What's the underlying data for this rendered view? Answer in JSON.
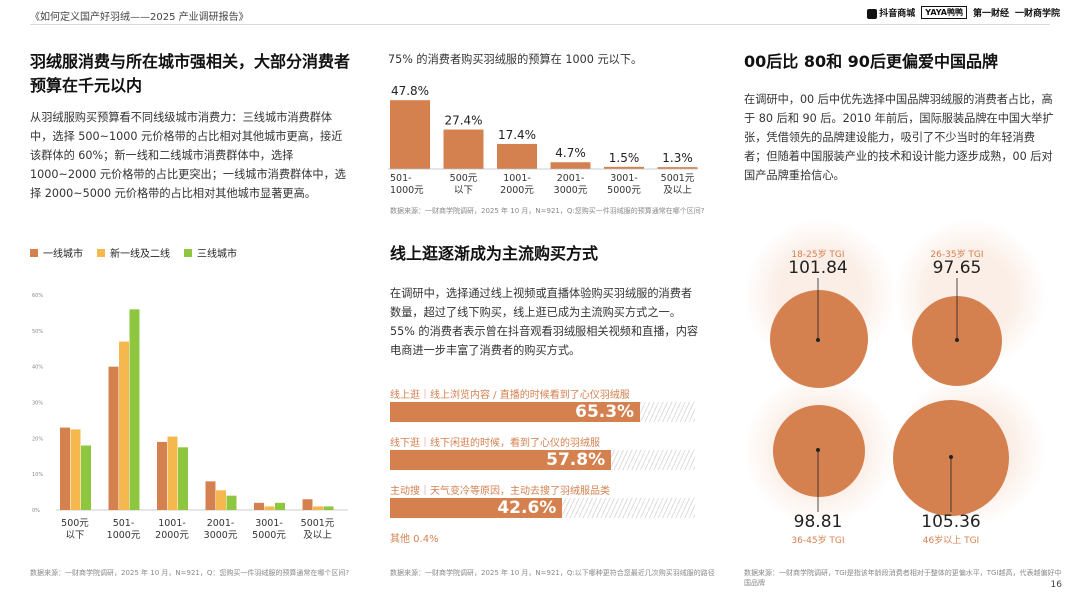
{
  "header": {
    "title": "《如何定义国产好羽绒——2025 产业调研报告》",
    "logos": [
      "抖音商城",
      "YAYA鸭鸭",
      "第一财经",
      "一财商学院"
    ]
  },
  "left": {
    "heading": "羽绒服消费与所在城市强相关，大部分消费者预算在千元以内",
    "body": "从羽绒服购买预算看不同线级城市消费力：三线城市消费群体中，选择 500~1000 元价格带的占比相对其他城市更高，接近该群体的 60%；新一线和二线城市消费群体中，选择 1000~2000 元价格带的占比更突出；一线城市消费群体中，选择 2000~5000 元价格带的占比相对其他城市显著更高。",
    "source": "数据来源：一财商学院调研，2025 年 10 月，N=921，Q：您购买一件羽绒服的预算通常在哪个区间?"
  },
  "middle": {
    "budget_caption": "75% 的消费者购买羽绒服的预算在 1000 元以下。",
    "budget_source": "数据来源：一财商学院调研，2025 年 10 月，N=921，Q:您购买一件羽绒服的预算通常在哪个区间?",
    "heading": "线上逛逐渐成为主流购买方式",
    "body": "在调研中，选择通过线上视频或直播体验购买羽绒服的消费者数量，超过了线下购买，线上逛已成为主流购买方式之一。55% 的消费者表示曾在抖音观看羽绒服相关视频和直播，内容电商进一步丰富了消费者的购买方式。",
    "bars": [
      {
        "label": "线上逛｜线上浏览内容 / 直播的时候看到了心仪羽绒服",
        "value_text": "65.3%",
        "value": 65.3
      },
      {
        "label": "线下逛｜线下闲逛的时候，看到了心仪的羽绒服",
        "value_text": "57.8%",
        "value": 57.8
      },
      {
        "label": "主动搜｜天气变冷等原因，主动去搜了羽绒服品类",
        "value_text": "42.6%",
        "value": 42.6
      }
    ],
    "other": "其他 0.4%",
    "source": "数据来源：一财商学院调研，2025 年 10 月，N=921，Q:以下哪种更符合您最近几次购买羽绒服的路径"
  },
  "right": {
    "heading": "00后比 80和 90后更偏爱中国品牌",
    "body": "在调研中，00 后中优先选择中国品牌羽绒服的消费者占比，高于 80 后和 90 后。2010 年前后，国际服装品牌在中国大举扩张，凭借领先的品牌建设能力，吸引了不少当时的年轻消费者；但随着中国服装产业的技术和设计能力逐步成熟，00 后对国产品牌重拾信心。",
    "tgi": [
      {
        "label": "18-25岁 TGI",
        "value": "101.84"
      },
      {
        "label": "26-35岁 TGI",
        "value": "97.65"
      },
      {
        "label": "36-45岁 TGI",
        "value": "98.81"
      },
      {
        "label": "46岁以上 TGI",
        "value": "105.36"
      }
    ],
    "source": "数据来源：一财商学院调研，TGI是指该年龄段消费者相对于整体的更偏水平，TGI越高，代表越偏好中国品牌"
  },
  "page_number": "16",
  "colors": {
    "accent": "#d4804f",
    "tier2": "#f5b84e",
    "tier3": "#8ec63f"
  },
  "chart_data": [
    {
      "type": "bar",
      "title": "",
      "categories": [
        "500元以下",
        "501-1000元",
        "1001-2000元",
        "2001-3000元",
        "3001-5000元",
        "5001元及以上"
      ],
      "series": [
        {
          "name": "一线城市",
          "values": [
            23,
            40,
            19,
            8,
            2,
            3
          ]
        },
        {
          "name": "新一线及二线",
          "values": [
            22.5,
            47,
            20.5,
            5.5,
            1,
            1
          ]
        },
        {
          "name": "三线城市",
          "values": [
            18,
            56,
            17.5,
            4,
            2,
            1
          ]
        }
      ],
      "yticks": [
        "0%",
        "10%",
        "20%",
        "30%",
        "40%",
        "50%",
        "60%"
      ],
      "ylim": [
        0,
        60
      ],
      "xlabel": "",
      "ylabel": "",
      "legend": "top-left"
    },
    {
      "type": "bar",
      "title": "75% 的消费者购买羽绒服的预算在 1000 元以下。",
      "categories": [
        "501-1000元",
        "500元以下",
        "1001-2000元",
        "2001-3000元",
        "3001-5000元",
        "5001元及以上"
      ],
      "values": [
        47.8,
        27.4,
        17.4,
        4.7,
        1.5,
        1.3
      ],
      "value_labels": [
        "47.8%",
        "27.4%",
        "17.4%",
        "4.7%",
        "1.5%",
        "1.3%"
      ],
      "ylim": [
        0,
        50
      ]
    }
  ]
}
